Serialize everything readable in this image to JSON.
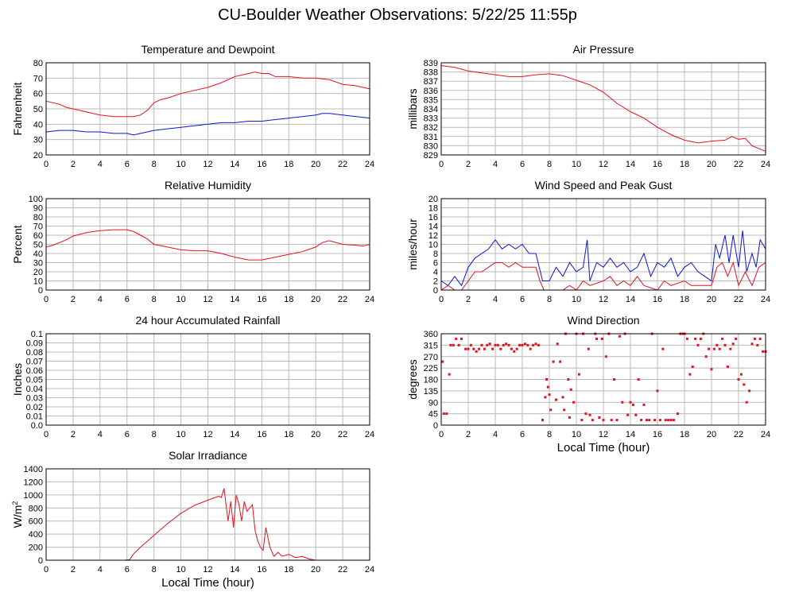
{
  "page_title": "CU-Boulder Weather Observations: 5/22/25 11:55p",
  "chart_data": [
    {
      "id": "temp",
      "type": "line",
      "title": "Temperature and Dewpoint",
      "xlabel": "",
      "ylabel": "Fahrenheit",
      "xlim": [
        0,
        24
      ],
      "ylim": [
        20,
        80
      ],
      "xticks": [
        0,
        2,
        4,
        6,
        8,
        10,
        12,
        14,
        16,
        18,
        20,
        22,
        24
      ],
      "yticks": [
        20,
        30,
        40,
        50,
        60,
        70,
        80
      ],
      "grid": true,
      "series": [
        {
          "color": "#e8101e",
          "x": [
            0,
            0.5,
            1,
            1.5,
            2,
            3,
            4,
            5,
            6,
            6.5,
            7,
            7.5,
            8,
            8.5,
            9,
            10,
            11,
            12,
            13,
            14,
            15,
            15.5,
            16,
            16.5,
            17,
            18,
            19,
            20,
            21,
            22,
            23,
            24
          ],
          "y": [
            55,
            54,
            53,
            51,
            50,
            48,
            46,
            45,
            45,
            45,
            46,
            49,
            54,
            56,
            57,
            60,
            62,
            64,
            67,
            71,
            73,
            74,
            73,
            73,
            71,
            71,
            70,
            70,
            69,
            66,
            65,
            63
          ]
        },
        {
          "color": "#0a14d8",
          "x": [
            0,
            1,
            2,
            3,
            4,
            5,
            6,
            6.5,
            7,
            8,
            9,
            10,
            11,
            12,
            13,
            14,
            15,
            16,
            17,
            18,
            19,
            20,
            20.5,
            21,
            22,
            23,
            24
          ],
          "y": [
            35,
            36,
            36,
            35,
            35,
            34,
            34,
            33,
            34,
            36,
            37,
            38,
            39,
            40,
            41,
            41,
            42,
            42,
            43,
            44,
            45,
            46,
            47,
            47,
            46,
            45,
            44
          ]
        }
      ]
    },
    {
      "id": "pressure",
      "type": "line",
      "title": "Air Pressure",
      "xlabel": "",
      "ylabel": "millibars",
      "xlim": [
        0,
        24
      ],
      "ylim": [
        829,
        839
      ],
      "xticks": [
        0,
        2,
        4,
        6,
        8,
        10,
        12,
        14,
        16,
        18,
        20,
        22,
        24
      ],
      "yticks": [
        829,
        830,
        831,
        832,
        833,
        834,
        835,
        836,
        837,
        838,
        839
      ],
      "grid": true,
      "series": [
        {
          "color": "#e8101e",
          "x": [
            0,
            1,
            2,
            3,
            4,
            5,
            6,
            7,
            8,
            9,
            10,
            11,
            12,
            13,
            14,
            15,
            16,
            17,
            18,
            19,
            20,
            21,
            21.5,
            22,
            22.5,
            23,
            24
          ],
          "y": [
            838.7,
            838.5,
            838.1,
            837.9,
            837.7,
            837.5,
            837.5,
            837.7,
            837.8,
            837.6,
            837.1,
            836.6,
            835.8,
            834.6,
            833.7,
            833,
            832,
            831.2,
            830.6,
            830.3,
            830.5,
            830.6,
            831,
            830.7,
            830.8,
            830,
            829.4
          ]
        }
      ]
    },
    {
      "id": "humidity",
      "type": "line",
      "title": "Relative Humidity",
      "xlabel": "",
      "ylabel": "Percent",
      "xlim": [
        0,
        24
      ],
      "ylim": [
        0,
        100
      ],
      "xticks": [
        0,
        2,
        4,
        6,
        8,
        10,
        12,
        14,
        16,
        18,
        20,
        22,
        24
      ],
      "yticks": [
        0,
        10,
        20,
        30,
        40,
        50,
        60,
        70,
        80,
        90,
        100
      ],
      "grid": true,
      "series": [
        {
          "color": "#e8101e",
          "x": [
            0,
            0.5,
            1,
            1.5,
            2,
            3,
            4,
            5,
            6,
            6.5,
            7,
            7.5,
            8,
            9,
            10,
            11,
            12,
            13,
            14,
            15,
            16,
            17,
            18,
            19,
            20,
            20.5,
            21,
            22,
            23,
            23.5,
            24
          ],
          "y": [
            47,
            49,
            52,
            55,
            59,
            63,
            65,
            66,
            66,
            64,
            60,
            56,
            50,
            47,
            44,
            43,
            43,
            40,
            36,
            33,
            33,
            36,
            39,
            42,
            47,
            52,
            54,
            50,
            49,
            48,
            50
          ]
        }
      ]
    },
    {
      "id": "wind",
      "type": "line",
      "title": "Wind Speed and Peak Gust",
      "xlabel": "",
      "ylabel": "miles/hour",
      "xlim": [
        0,
        24
      ],
      "ylim": [
        0,
        20
      ],
      "xticks": [
        0,
        2,
        4,
        6,
        8,
        10,
        12,
        14,
        16,
        18,
        20,
        22,
        24
      ],
      "yticks": [
        0,
        2,
        4,
        6,
        8,
        10,
        12,
        14,
        16,
        18,
        20
      ],
      "grid": true,
      "series": [
        {
          "color": "#0a14d8",
          "x": [
            0,
            0.5,
            1,
            1.5,
            2,
            2.5,
            3,
            3.5,
            4,
            4.5,
            5,
            5.5,
            6,
            6.5,
            7,
            7.5,
            8,
            8.5,
            9,
            9.5,
            10,
            10.5,
            10.8,
            11,
            11.5,
            12,
            12.5,
            13,
            13.5,
            14,
            14.5,
            15,
            15.5,
            16,
            16.5,
            17,
            17.5,
            18,
            18.5,
            19,
            19.5,
            20,
            20.3,
            20.6,
            21,
            21.3,
            21.6,
            22,
            22.3,
            22.6,
            23,
            23.3,
            23.6,
            24
          ],
          "y": [
            2,
            1,
            3,
            1,
            5,
            7,
            8,
            9,
            11,
            9,
            10,
            9,
            10,
            8,
            8,
            2,
            2,
            5,
            3,
            6,
            4,
            5,
            11,
            2,
            6,
            5,
            7,
            5,
            6,
            4,
            5,
            8,
            3,
            6,
            5,
            7,
            3,
            5,
            6,
            4,
            3,
            2,
            10,
            7,
            12,
            6,
            12,
            5,
            13,
            4,
            8,
            5,
            11,
            9
          ]
        },
        {
          "color": "#e8101e",
          "x": [
            0,
            0.5,
            1,
            1.5,
            2,
            2.5,
            3,
            3.5,
            4,
            4.5,
            5,
            5.5,
            6,
            6.5,
            7,
            7.3,
            7.6,
            8,
            9,
            9.5,
            10,
            10.5,
            11,
            12,
            12.5,
            13,
            13.5,
            14,
            14.5,
            15,
            16,
            16.5,
            17,
            18,
            18.5,
            19,
            20,
            20.4,
            20.8,
            21.2,
            21.6,
            22,
            22.5,
            23,
            23.5,
            24
          ],
          "y": [
            0,
            1,
            0,
            0,
            2,
            4,
            4,
            5,
            6,
            6,
            5,
            6,
            5,
            5,
            5,
            2,
            0,
            0,
            0,
            1,
            0,
            2,
            1,
            2,
            3,
            1,
            2,
            1,
            3,
            1,
            0,
            2,
            1,
            2,
            1,
            1,
            1,
            5,
            6,
            3,
            6,
            1,
            4,
            1,
            5,
            6
          ]
        }
      ]
    },
    {
      "id": "rain",
      "type": "line",
      "title": "24 hour Accumulated Rainfall",
      "xlabel": "",
      "ylabel": "Inches",
      "xlim": [
        0,
        24
      ],
      "ylim": [
        0,
        0.1
      ],
      "xticks": [
        0,
        2,
        4,
        6,
        8,
        10,
        12,
        14,
        16,
        18,
        20,
        22,
        24
      ],
      "yticks": [
        "0.0",
        "0.01",
        "0.02",
        "0.03",
        "0.04",
        "0.05",
        "0.06",
        "0.07",
        "0.08",
        "0.09",
        "0.1"
      ],
      "grid": true,
      "series": [
        {
          "color": "#e8101e",
          "x": [
            0,
            24
          ],
          "y": [
            0,
            0
          ]
        }
      ]
    },
    {
      "id": "direction",
      "type": "scatter",
      "title": "Wind Direction",
      "xlabel": "Local Time (hour)",
      "ylabel": "degrees",
      "xlim": [
        0,
        24
      ],
      "ylim": [
        0,
        360
      ],
      "xticks": [
        0,
        2,
        4,
        6,
        8,
        10,
        12,
        14,
        16,
        18,
        20,
        22,
        24
      ],
      "yticks": [
        0,
        45,
        90,
        135,
        180,
        225,
        270,
        315,
        360
      ],
      "grid": true,
      "series": [
        {
          "color": "#e8101e",
          "x": [
            0.1,
            0.2,
            0.4,
            0.6,
            0.7,
            0.9,
            1.1,
            1.3,
            1.5,
            1.8,
            2.0,
            2.2,
            2.4,
            2.6,
            2.8,
            3.0,
            3.2,
            3.4,
            3.6,
            3.8,
            4.0,
            4.2,
            4.4,
            4.6,
            4.8,
            5.0,
            5.2,
            5.4,
            5.6,
            5.8,
            6.0,
            6.2,
            6.4,
            6.6,
            6.8,
            7.0,
            7.2,
            7.5,
            7.7,
            7.8,
            7.9,
            8.0,
            8.1,
            8.3,
            8.5,
            8.6,
            8.8,
            9.0,
            9.1,
            9.2,
            9.4,
            9.5,
            9.6,
            9.8,
            10.0,
            10.2,
            10.4,
            10.5,
            10.7,
            10.9,
            11.0,
            11.2,
            11.4,
            11.5,
            11.7,
            11.9,
            12.0,
            12.2,
            12.4,
            12.6,
            12.8,
            13.0,
            13.2,
            13.4,
            13.6,
            13.8,
            14.0,
            14.2,
            14.4,
            14.6,
            14.8,
            15.0,
            15.2,
            15.4,
            15.6,
            15.8,
            16.0,
            16.2,
            16.4,
            16.6,
            16.8,
            17.0,
            17.2,
            17.5,
            17.7,
            17.9,
            18.0,
            18.2,
            18.4,
            18.6,
            18.8,
            19.0,
            19.2,
            19.4,
            19.6,
            19.8,
            20.0,
            20.2,
            20.4,
            20.6,
            20.8,
            21.0,
            21.2,
            21.4,
            21.6,
            21.8,
            22.0,
            22.2,
            22.4,
            22.6,
            22.8,
            23.0,
            23.2,
            23.4,
            23.6,
            23.8,
            24.0
          ],
          "y": [
            250,
            45,
            45,
            200,
            315,
            315,
            340,
            315,
            340,
            300,
            300,
            315,
            300,
            290,
            300,
            315,
            300,
            315,
            320,
            300,
            315,
            315,
            300,
            315,
            320,
            315,
            300,
            290,
            300,
            315,
            315,
            320,
            315,
            300,
            315,
            320,
            315,
            20,
            110,
            180,
            150,
            120,
            60,
            250,
            100,
            320,
            250,
            110,
            60,
            360,
            180,
            30,
            140,
            90,
            360,
            200,
            20,
            360,
            45,
            300,
            40,
            20,
            360,
            340,
            30,
            340,
            20,
            270,
            360,
            20,
            180,
            20,
            350,
            90,
            360,
            40,
            90,
            80,
            40,
            180,
            20,
            80,
            20,
            20,
            360,
            20,
            135,
            20,
            300,
            20,
            20,
            20,
            20,
            45,
            360,
            360,
            360,
            340,
            200,
            230,
            340,
            315,
            340,
            360,
            270,
            300,
            220,
            300,
            315,
            300,
            340,
            315,
            230,
            300,
            320,
            340,
            180,
            200,
            160,
            90,
            135,
            320,
            340,
            315,
            340,
            290,
            290
          ]
        }
      ]
    },
    {
      "id": "solar",
      "type": "line",
      "title": "Solar Irradiance",
      "xlabel": "Local Time (hour)",
      "ylabel": "W/m",
      "ylabel_sup": "2",
      "xlim": [
        0,
        24
      ],
      "ylim": [
        0,
        1400
      ],
      "xticks": [
        0,
        2,
        4,
        6,
        8,
        10,
        12,
        14,
        16,
        18,
        20,
        22,
        24
      ],
      "yticks": [
        0,
        200,
        400,
        600,
        800,
        1000,
        1200,
        1400
      ],
      "grid": true,
      "series": [
        {
          "color": "#e8101e",
          "x": [
            0,
            5.8,
            6.2,
            6.5,
            7,
            8,
            9,
            10,
            11,
            12,
            12.8,
            13,
            13.2,
            13.5,
            13.7,
            13.9,
            14.1,
            14.3,
            14.5,
            14.7,
            14.9,
            15.1,
            15.3,
            15.5,
            15.7,
            15.9,
            16.1,
            16.3,
            16.6,
            16.9,
            17.2,
            17.5,
            18,
            18.5,
            19,
            19.5,
            20,
            24
          ],
          "y": [
            0,
            0,
            10,
            100,
            200,
            380,
            560,
            720,
            840,
            920,
            980,
            960,
            1100,
            600,
            900,
            500,
            1000,
            860,
            600,
            900,
            750,
            800,
            850,
            450,
            300,
            200,
            150,
            500,
            200,
            60,
            120,
            60,
            90,
            40,
            60,
            20,
            0,
            0
          ]
        }
      ]
    }
  ]
}
